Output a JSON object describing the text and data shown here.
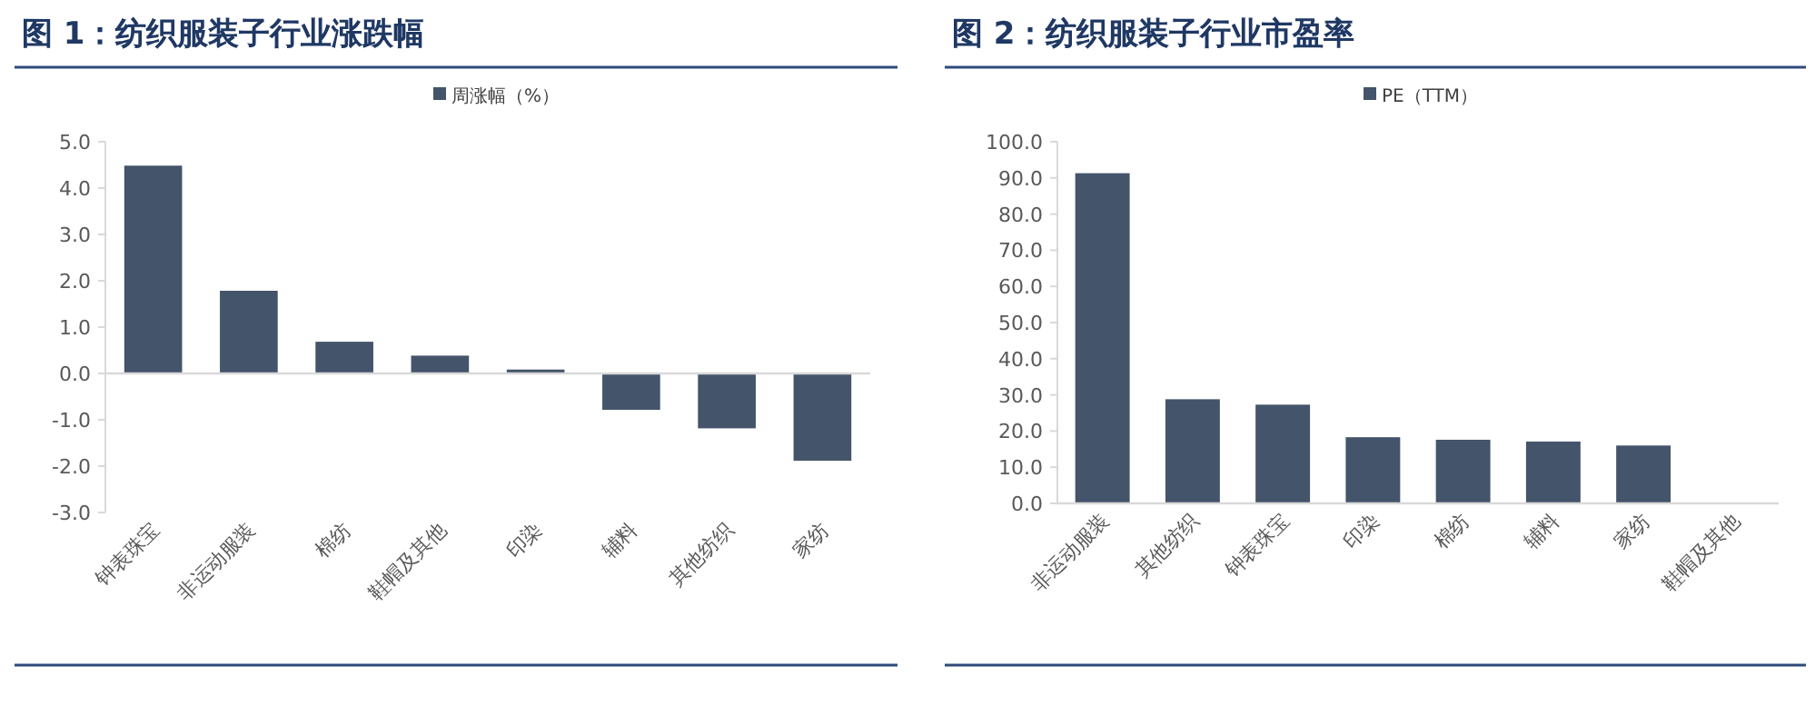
{
  "chart_data": [
    {
      "type": "bar",
      "title": "图 1：纺织服装子行业涨跌幅",
      "categories": [
        "钟表珠宝",
        "非运动服装",
        "棉纺",
        "鞋帽及其他",
        "印染",
        "辅料",
        "其他纺织",
        "家纺"
      ],
      "series": [
        {
          "name": "周涨幅（%）",
          "color": "#44546a",
          "values": [
            4.5,
            1.8,
            0.7,
            0.4,
            0.1,
            -0.8,
            -1.2,
            -1.9
          ]
        }
      ],
      "ylim": [
        -3,
        5
      ],
      "yticks": [
        {
          "value": -3,
          "label": "-3.0"
        },
        {
          "value": -2,
          "label": "-2.0"
        },
        {
          "value": -1,
          "label": "-1.0"
        },
        {
          "value": 0,
          "label": "0.0"
        },
        {
          "value": 1,
          "label": "1.0"
        },
        {
          "value": 2,
          "label": "2.0"
        },
        {
          "value": 3,
          "label": "3.0"
        },
        {
          "value": 4,
          "label": "4.0"
        },
        {
          "value": 5,
          "label": "5.0"
        }
      ],
      "legend": "top"
    },
    {
      "type": "bar",
      "title": "图 2：纺织服装子行业市盈率",
      "categories": [
        "非运动服装",
        "其他纺织",
        "钟表珠宝",
        "印染",
        "棉纺",
        "辅料",
        "家纺",
        "鞋帽及其他"
      ],
      "series": [
        {
          "name": "PE（TTM）",
          "color": "#44546a",
          "values": [
            91.5,
            29,
            27.5,
            18.5,
            17.8,
            17.3,
            16.2,
            null
          ]
        }
      ],
      "ylim": [
        0,
        100
      ],
      "yticks": [
        {
          "value": 0,
          "label": "0.0"
        },
        {
          "value": 10,
          "label": "10.0"
        },
        {
          "value": 20,
          "label": "20.0"
        },
        {
          "value": 30,
          "label": "30.0"
        },
        {
          "value": 40,
          "label": "40.0"
        },
        {
          "value": 50,
          "label": "50.0"
        },
        {
          "value": 60,
          "label": "60.0"
        },
        {
          "value": 70,
          "label": "70.0"
        },
        {
          "value": 80,
          "label": "80.0"
        },
        {
          "value": 90,
          "label": "90.0"
        },
        {
          "value": 100,
          "label": "100.0"
        }
      ],
      "legend": "top"
    }
  ]
}
